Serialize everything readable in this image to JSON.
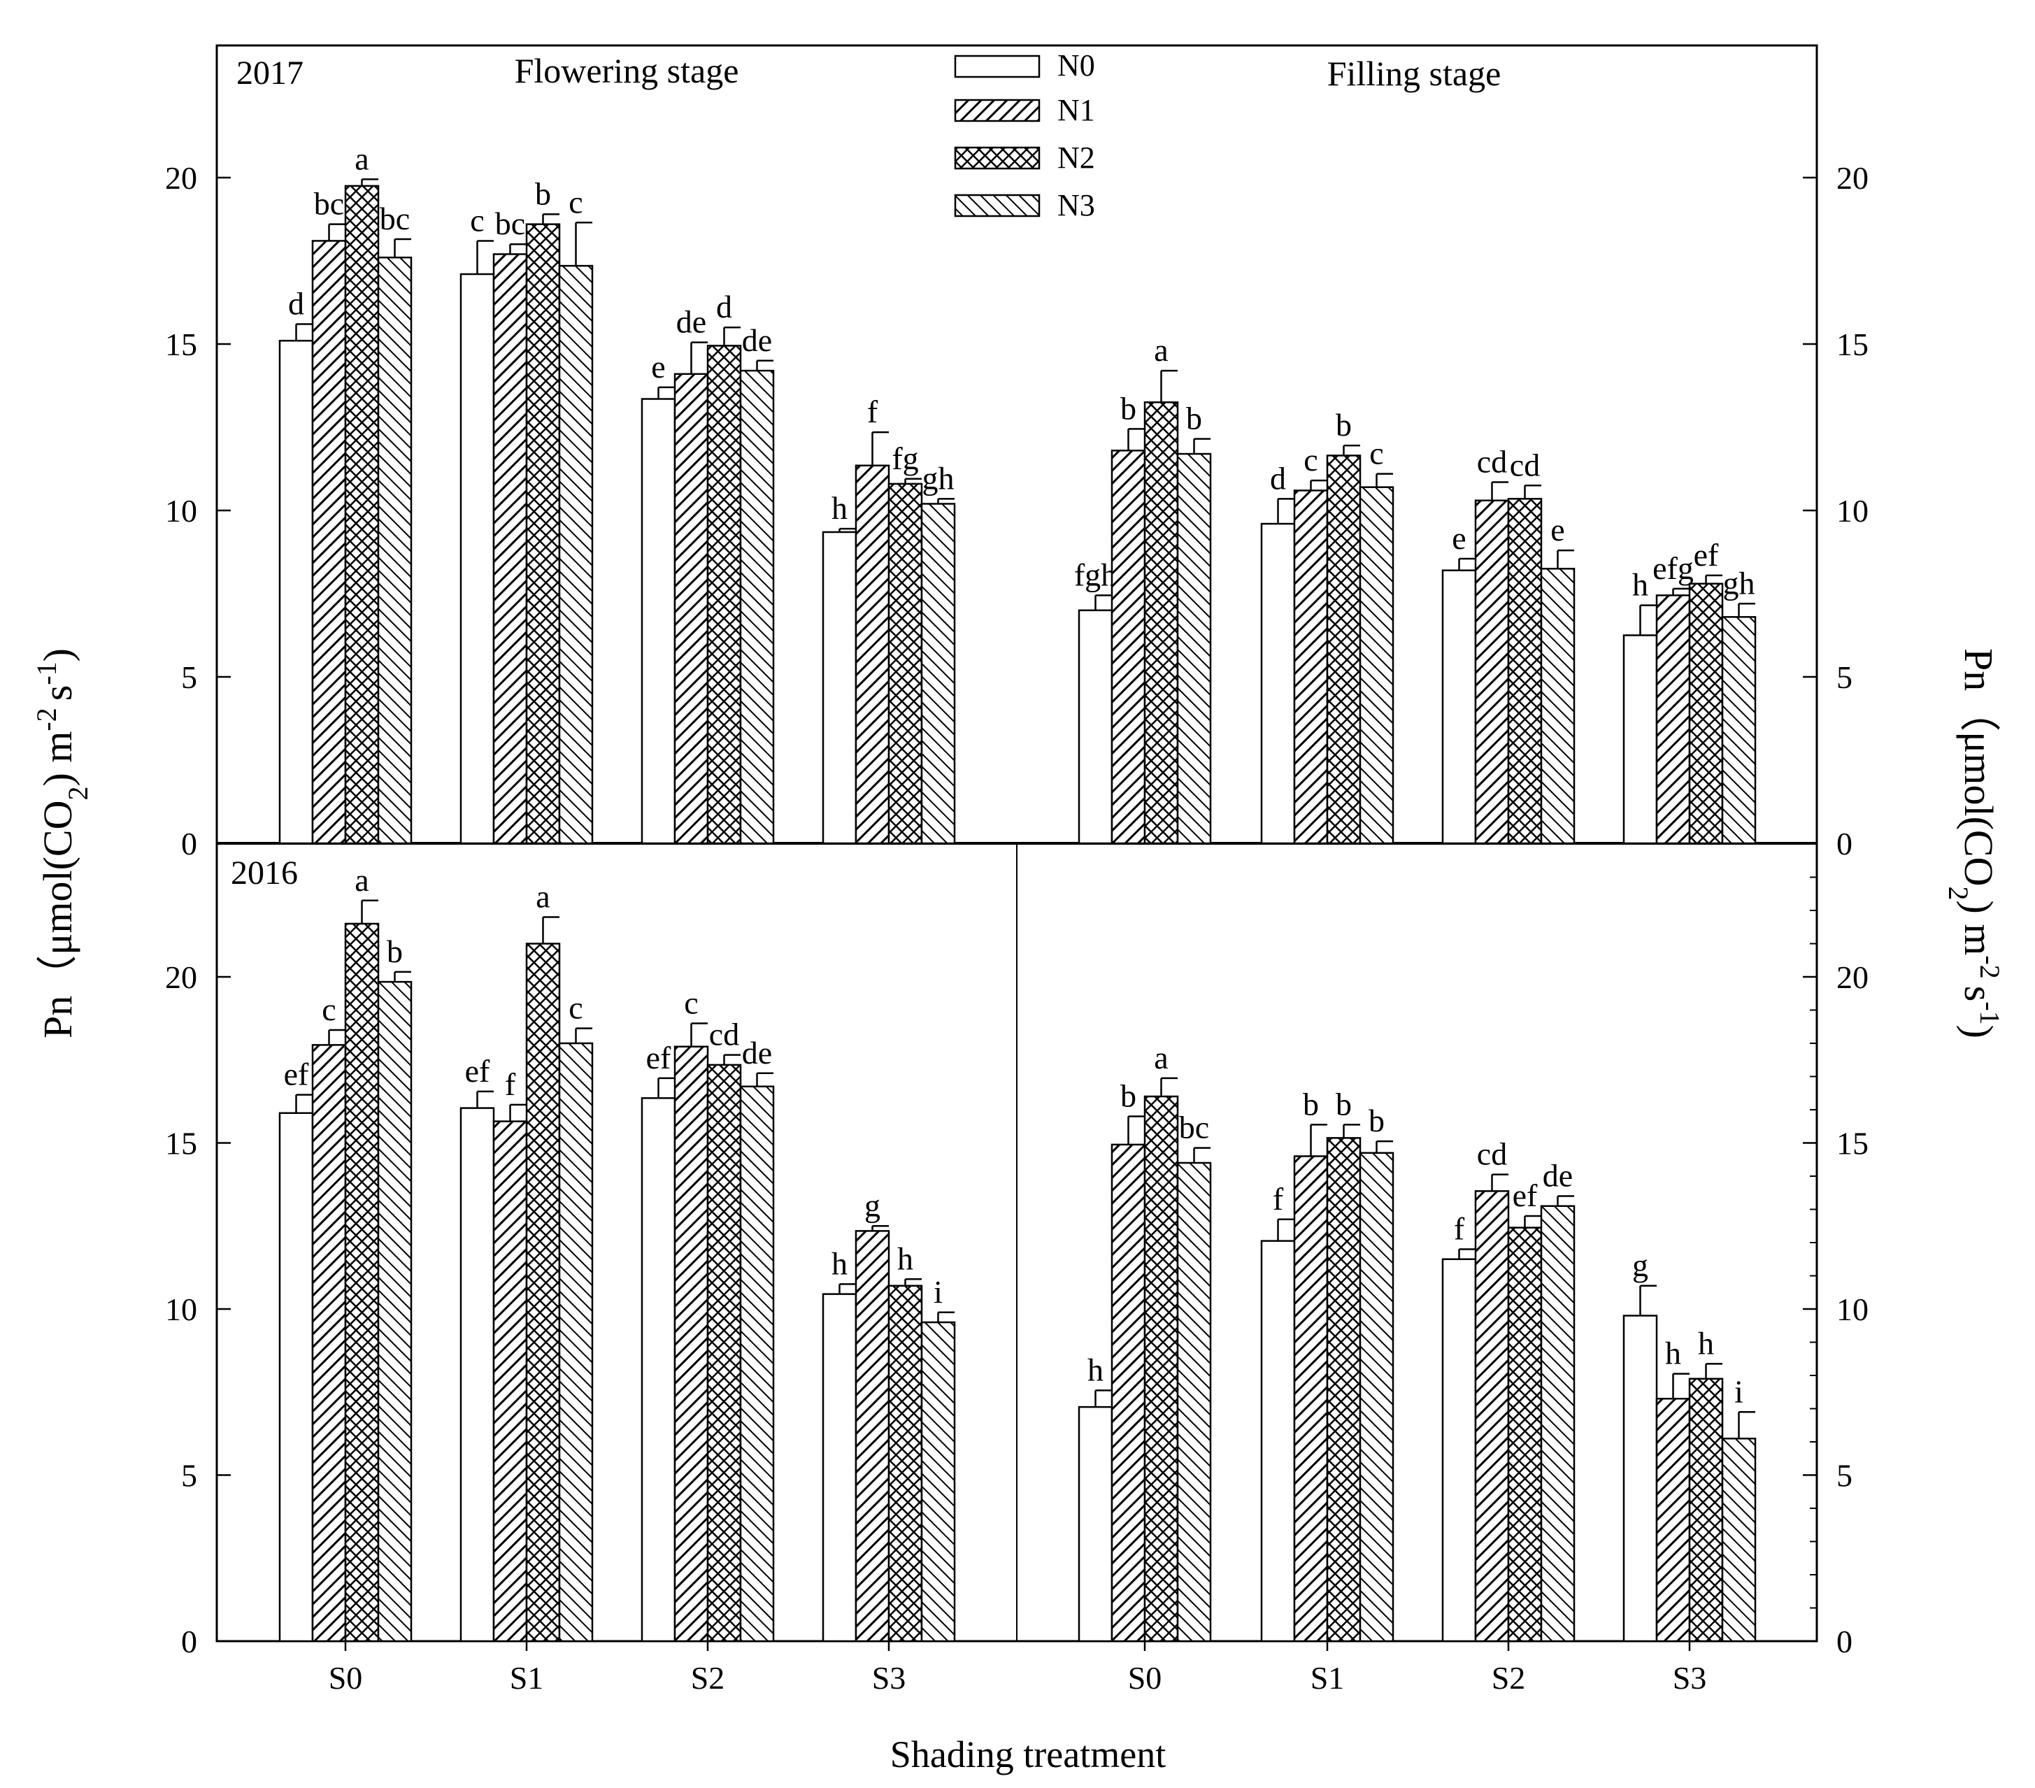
{
  "figure": {
    "x_axis_label": "Shading treatment",
    "y_axis_left_label": "Pn（μmol(CO2) m-2 s-1)",
    "y_axis_right_label": "Pn（μmol(CO2) m-2 s-1)"
  },
  "legend": {
    "entries": [
      {
        "label": "N0",
        "pattern": "open"
      },
      {
        "label": "N1",
        "pattern": "diagonal-forward"
      },
      {
        "label": "N2",
        "pattern": "crosshatch"
      },
      {
        "label": "N3",
        "pattern": "diagonal-backward"
      }
    ]
  },
  "chart_data": [
    {
      "type": "bar",
      "panel": "top",
      "year_label": "2017",
      "stage_labels": [
        "Flowering stage",
        "Filling stage"
      ],
      "ylim": [
        0,
        24
      ],
      "yticks": [
        0,
        5,
        10,
        15,
        20
      ],
      "groups": [
        {
          "stage": "Flowering stage",
          "categories": [
            "S0",
            "S1",
            "S2",
            "S3"
          ],
          "series": [
            {
              "name": "N0",
              "values": [
                15.1,
                17.1,
                13.35,
                9.35
              ],
              "errors": [
                0.5,
                1.0,
                0.35,
                0.1
              ],
              "letters": [
                "d",
                "c",
                "e",
                "h"
              ]
            },
            {
              "name": "N1",
              "values": [
                18.1,
                17.7,
                14.1,
                11.35
              ],
              "errors": [
                0.5,
                0.3,
                0.95,
                1.0
              ],
              "letters": [
                "bc",
                "bc",
                "de",
                "f"
              ]
            },
            {
              "name": "N2",
              "values": [
                19.75,
                18.6,
                14.95,
                10.8
              ],
              "errors": [
                0.2,
                0.3,
                0.55,
                0.15
              ],
              "letters": [
                "a",
                "b",
                "d",
                "fg"
              ]
            },
            {
              "name": "N3",
              "values": [
                17.6,
                17.35,
                14.2,
                10.2
              ],
              "errors": [
                0.55,
                1.3,
                0.3,
                0.15
              ],
              "letters": [
                "bc",
                "c",
                "de",
                "gh"
              ]
            }
          ]
        },
        {
          "stage": "Filling stage",
          "categories": [
            "S0",
            "S1",
            "S2",
            "S3"
          ],
          "series": [
            {
              "name": "N0",
              "values": [
                7.0,
                9.6,
                8.2,
                6.25
              ],
              "errors": [
                0.45,
                0.75,
                0.35,
                0.9
              ],
              "letters": [
                "fgh",
                "d",
                "e",
                "h"
              ]
            },
            {
              "name": "N1",
              "values": [
                11.8,
                10.6,
                10.3,
                7.45
              ],
              "errors": [
                0.65,
                0.3,
                0.55,
                0.2
              ],
              "letters": [
                "b",
                "c",
                "cd",
                "efg"
              ]
            },
            {
              "name": "N2",
              "values": [
                13.25,
                11.65,
                10.35,
                7.8
              ],
              "errors": [
                0.95,
                0.3,
                0.4,
                0.25
              ],
              "letters": [
                "a",
                "b",
                "cd",
                "ef"
              ]
            },
            {
              "name": "N3",
              "values": [
                11.7,
                10.7,
                8.25,
                6.8
              ],
              "errors": [
                0.45,
                0.4,
                0.55,
                0.4
              ],
              "letters": [
                "b",
                "c",
                "e",
                "gh"
              ]
            }
          ]
        }
      ]
    },
    {
      "type": "bar",
      "panel": "bottom",
      "year_label": "2016",
      "ylim": [
        0,
        24
      ],
      "yticks": [
        0,
        5,
        10,
        15,
        20
      ],
      "groups": [
        {
          "stage": "Flowering stage",
          "categories": [
            "S0",
            "S1",
            "S2",
            "S3"
          ],
          "series": [
            {
              "name": "N0",
              "values": [
                15.9,
                16.05,
                16.35,
                10.45
              ],
              "errors": [
                0.55,
                0.5,
                0.6,
                0.3
              ],
              "letters": [
                "ef",
                "ef",
                "ef",
                "h"
              ]
            },
            {
              "name": "N1",
              "values": [
                17.95,
                15.65,
                17.9,
                12.35
              ],
              "errors": [
                0.45,
                0.5,
                0.7,
                0.15
              ],
              "letters": [
                "c",
                "f",
                "c",
                "g"
              ]
            },
            {
              "name": "N2",
              "values": [
                21.6,
                21.0,
                17.35,
                10.7
              ],
              "errors": [
                0.7,
                0.8,
                0.3,
                0.2
              ],
              "letters": [
                "a",
                "a",
                "cd",
                "h"
              ]
            },
            {
              "name": "N3",
              "values": [
                19.85,
                18.0,
                16.7,
                9.6
              ],
              "errors": [
                0.3,
                0.45,
                0.4,
                0.3
              ],
              "letters": [
                "b",
                "c",
                "de",
                "i"
              ]
            }
          ]
        },
        {
          "stage": "Filling stage",
          "categories": [
            "S0",
            "S1",
            "S2",
            "S3"
          ],
          "series": [
            {
              "name": "N0",
              "values": [
                7.05,
                12.05,
                11.5,
                9.8
              ],
              "errors": [
                0.5,
                0.65,
                0.3,
                0.9
              ],
              "letters": [
                "h",
                "f",
                "f",
                "g"
              ]
            },
            {
              "name": "N1",
              "values": [
                14.95,
                14.6,
                13.55,
                7.3
              ],
              "errors": [
                0.85,
                0.95,
                0.5,
                0.75
              ],
              "letters": [
                "b",
                "b",
                "cd",
                "h"
              ]
            },
            {
              "name": "N2",
              "values": [
                16.4,
                15.15,
                12.45,
                7.9
              ],
              "errors": [
                0.55,
                0.4,
                0.35,
                0.45
              ],
              "letters": [
                "a",
                "b",
                "ef",
                "h"
              ]
            },
            {
              "name": "N3",
              "values": [
                14.4,
                14.7,
                13.1,
                6.1
              ],
              "errors": [
                0.45,
                0.35,
                0.3,
                0.8
              ],
              "letters": [
                "bc",
                "b",
                "de",
                "i"
              ]
            }
          ]
        }
      ]
    }
  ]
}
